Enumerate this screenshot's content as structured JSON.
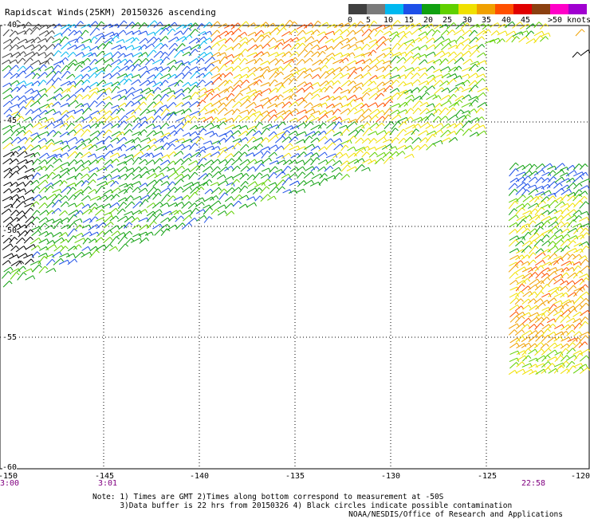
{
  "title": "Rapidscat Winds(25KM) 20150326 ascending",
  "speed_scale": {
    "labels": [
      "0",
      "5",
      "10",
      "15",
      "20",
      "25",
      "30",
      "35",
      "40",
      "45",
      ">50 knots"
    ],
    "colors": [
      "#404040",
      "#7a7a7a",
      "#00b8f0",
      "#1e50e8",
      "#10a010",
      "#60d000",
      "#f0e000",
      "#f0a000",
      "#ff5000",
      "#e00000",
      "#8b4010",
      "#ff00c8",
      "#a000d0"
    ]
  },
  "axes": {
    "lat_labels": [
      "-40",
      "-45",
      "-50",
      "-55",
      "-60"
    ],
    "lon_labels": [
      "-150",
      "-145",
      "-140",
      "-135",
      "-130",
      "-125",
      "-120"
    ]
  },
  "times": [
    "3:00",
    "3:01",
    "22:58"
  ],
  "notes": [
    "Note: 1) Times are GMT 2)Times along bottom correspond to measurement at -50S",
    "      3)Data buffer is 22 hrs from 20150326 4) Black circles indicate possible contamination"
  ],
  "credit": "NOAA/NESDIS/Office of Research and Applications"
}
